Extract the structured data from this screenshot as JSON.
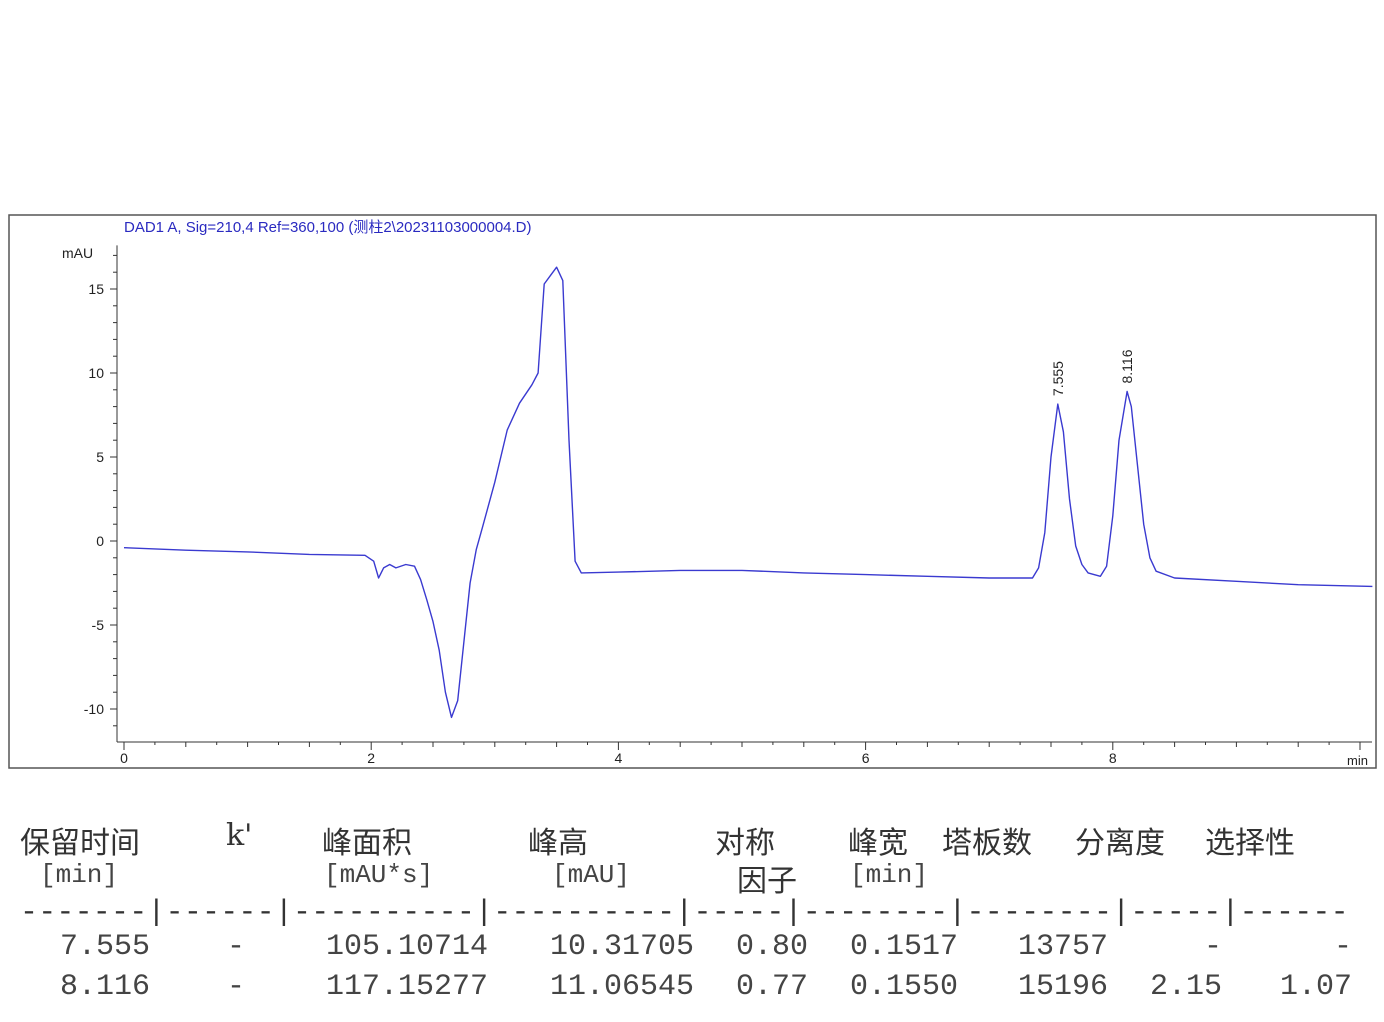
{
  "chart_data": {
    "type": "line",
    "title": "DAD1 A, Sig=210,4 Ref=360,100 (测柱2\\20231103000004.D)",
    "xlabel": "min",
    "ylabel": "mAU",
    "xlim": [
      0,
      10.1
    ],
    "ylim": [
      -11.9,
      17.6
    ],
    "xticks": [
      0,
      2,
      4,
      6,
      8
    ],
    "yticks": [
      -10,
      -5,
      0,
      5,
      10,
      15
    ],
    "grid": false,
    "line_color": "#3a3ad0",
    "title_color": "#2a2ac0",
    "peak_labels": [
      {
        "x": 7.555,
        "y": 8.15,
        "label": "7.555"
      },
      {
        "x": 8.116,
        "y": 8.9,
        "label": "8.116"
      }
    ],
    "series": [
      {
        "points": [
          [
            0,
            -0.4
          ],
          [
            0.5,
            -0.55
          ],
          [
            1,
            -0.65
          ],
          [
            1.5,
            -0.8
          ],
          [
            1.95,
            -0.85
          ],
          [
            2.02,
            -1.2
          ],
          [
            2.06,
            -2.2
          ],
          [
            2.1,
            -1.6
          ],
          [
            2.15,
            -1.4
          ],
          [
            2.2,
            -1.6
          ],
          [
            2.28,
            -1.4
          ],
          [
            2.35,
            -1.5
          ],
          [
            2.4,
            -2.3
          ],
          [
            2.45,
            -3.5
          ],
          [
            2.5,
            -4.8
          ],
          [
            2.55,
            -6.5
          ],
          [
            2.6,
            -9
          ],
          [
            2.65,
            -10.5
          ],
          [
            2.7,
            -9.5
          ],
          [
            2.75,
            -6
          ],
          [
            2.8,
            -2.5
          ],
          [
            2.85,
            -0.5
          ],
          [
            2.9,
            0.8
          ],
          [
            3.0,
            3.5
          ],
          [
            3.1,
            6.6
          ],
          [
            3.2,
            8.2
          ],
          [
            3.3,
            9.3
          ],
          [
            3.35,
            10
          ],
          [
            3.4,
            15.3
          ],
          [
            3.45,
            15.8
          ],
          [
            3.5,
            16.3
          ],
          [
            3.55,
            15.5
          ],
          [
            3.6,
            6
          ],
          [
            3.65,
            -1.2
          ],
          [
            3.7,
            -1.9
          ],
          [
            4,
            -1.85
          ],
          [
            4.5,
            -1.75
          ],
          [
            5,
            -1.75
          ],
          [
            5.5,
            -1.9
          ],
          [
            6,
            -2.0
          ],
          [
            6.5,
            -2.1
          ],
          [
            7,
            -2.2
          ],
          [
            7.35,
            -2.2
          ],
          [
            7.4,
            -1.6
          ],
          [
            7.45,
            0.5
          ],
          [
            7.5,
            5
          ],
          [
            7.555,
            8.15
          ],
          [
            7.6,
            6.5
          ],
          [
            7.65,
            2.5
          ],
          [
            7.7,
            -0.3
          ],
          [
            7.75,
            -1.4
          ],
          [
            7.8,
            -1.9
          ],
          [
            7.9,
            -2.1
          ],
          [
            7.95,
            -1.5
          ],
          [
            8.0,
            1.5
          ],
          [
            8.05,
            6
          ],
          [
            8.116,
            8.9
          ],
          [
            8.15,
            8.0
          ],
          [
            8.2,
            4.5
          ],
          [
            8.25,
            1.0
          ],
          [
            8.3,
            -1.0
          ],
          [
            8.35,
            -1.8
          ],
          [
            8.5,
            -2.2
          ],
          [
            9,
            -2.4
          ],
          [
            9.5,
            -2.6
          ],
          [
            10.1,
            -2.7
          ]
        ]
      }
    ]
  },
  "table": {
    "headers": [
      "保留时间",
      "k'",
      "峰面积",
      "峰高",
      "对称",
      "峰宽",
      "塔板数",
      "分离度",
      "选择性"
    ],
    "header_line2": [
      "[min]",
      "[mAU*s]",
      "[mAU]",
      "因子",
      "[min]"
    ],
    "separator": "-------|------|----------|----------|-----|--------|--------|-----|------",
    "rows": [
      [
        "7.555",
        "-",
        "105.10714",
        "10.31705",
        "0.80",
        "0.1517",
        "13757",
        "-",
        "-"
      ],
      [
        "8.116",
        "-",
        "117.15277",
        "11.06545",
        "0.77",
        "0.1550",
        "15196",
        "2.15",
        "1.07"
      ]
    ]
  }
}
